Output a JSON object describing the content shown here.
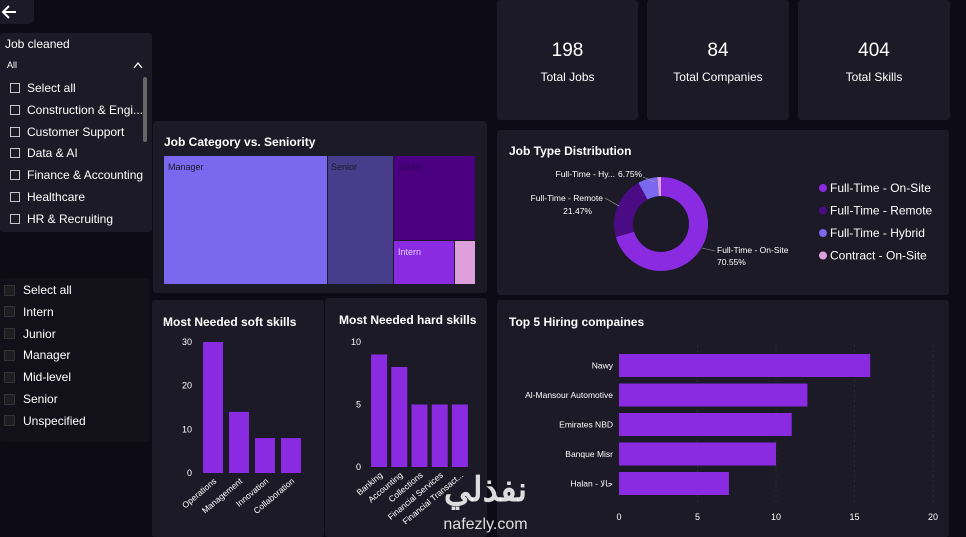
{
  "back_button": {
    "icon": "arrow-left-icon"
  },
  "job_slicer": {
    "title": "Job cleaned",
    "dropdown_value": "All",
    "items": [
      "Select all",
      "Construction & Engi...",
      "Customer Support",
      "Data & AI",
      "Finance & Accounting",
      "Healthcare",
      "HR & Recruiting"
    ]
  },
  "seniority_slicer": {
    "items": [
      "Select all",
      "Intern",
      "Junior",
      "Manager",
      "Mid-level",
      "Senior",
      "Unspecified"
    ]
  },
  "kpis": [
    {
      "value": "198",
      "label": "Total Jobs"
    },
    {
      "value": "84",
      "label": "Total Companies"
    },
    {
      "value": "404",
      "label": "Total Skills"
    }
  ],
  "treemap": {
    "title": "Job Category vs. Seniority",
    "labels": [
      "Manager",
      "Senior",
      "Junior",
      "Intern"
    ]
  },
  "donut": {
    "title": "Job Type Distribution",
    "slices": [
      {
        "name": "Full-Time - On-Site",
        "value": 70.55,
        "label": "Full-Time - On-Site",
        "pct": "70.55%",
        "color": "#8a2be2"
      },
      {
        "name": "Full-Time - Remote",
        "value": 21.47,
        "label": "Full-Time - Remote",
        "pct": "21.47%",
        "color": "#4a0b85"
      },
      {
        "name": "Full-Time - Hybrid",
        "value": 6.75,
        "label": "Full-Time - Hy...",
        "pct": "6.75%",
        "color": "#7b68ee"
      },
      {
        "name": "Contract - On-Site",
        "value": 1.23,
        "label": "",
        "pct": "",
        "color": "#dda0dd"
      }
    ],
    "legend": [
      "Full-Time - On-Site",
      "Full-Time - Remote",
      "Full-Time - Hybrid",
      "Contract - On-Site"
    ]
  },
  "soft_skills": {
    "title": "Most Needed soft skills",
    "chart_data": {
      "type": "bar",
      "categories": [
        "Operations",
        "Management",
        "Innovation",
        "Collaboration"
      ],
      "values": [
        30,
        14,
        8,
        8
      ],
      "ylim": [
        0,
        30
      ],
      "yticks": [
        "0",
        "10",
        "20",
        "30"
      ]
    }
  },
  "hard_skills": {
    "title": "Most Needed hard skills",
    "chart_data": {
      "type": "bar",
      "categories": [
        "Banking",
        "Accounting",
        "Collections",
        "Financial Services",
        "Financial Transact..."
      ],
      "values": [
        9,
        8,
        5,
        5,
        5
      ],
      "ylim": [
        0,
        10
      ],
      "yticks": [
        "0",
        "5",
        "10"
      ]
    }
  },
  "hiring": {
    "title": "Top 5 Hiring compaines",
    "chart_data": {
      "type": "bar",
      "orientation": "horizontal",
      "categories": [
        "Nawy",
        "Al-Mansour Automotive",
        "Emirates NBD",
        "Banque Misr",
        "Halan - حالا"
      ],
      "values": [
        16,
        12,
        11,
        10,
        7
      ],
      "xlim": [
        0,
        20
      ],
      "xticks": [
        "0",
        "5",
        "10",
        "15",
        "20"
      ]
    }
  },
  "watermark": {
    "arabic": "نفذلي",
    "latin": "nafezly.com"
  },
  "colors": {
    "bar": "#8a2be2",
    "treemap_manager": "#7b68ee",
    "treemap_senior": "#483d8b",
    "treemap_junior": "#4b0082",
    "treemap_intern": "#8a2be2",
    "treemap_small": "#dda0dd"
  }
}
